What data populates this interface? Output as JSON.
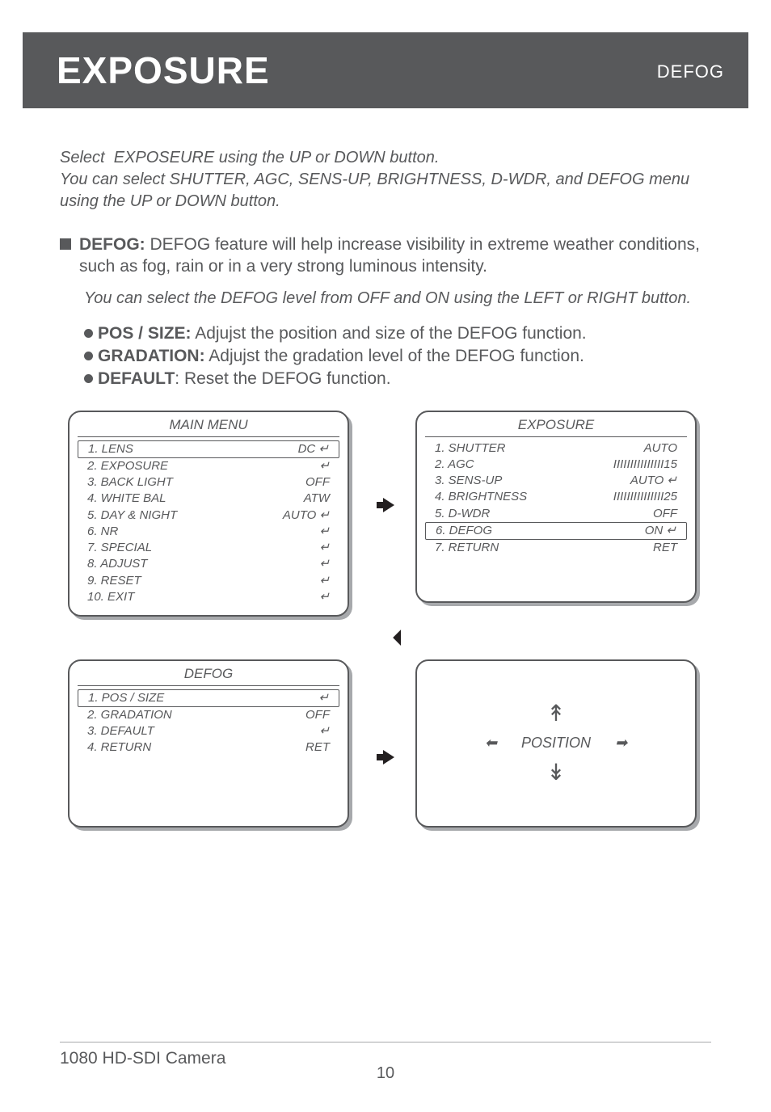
{
  "header": {
    "title": "EXPOSURE",
    "sub": "DEFOG"
  },
  "intro": "Select  EXPOSEURE using the UP or DOWN button.\nYou can select SHUTTER, AGC, SENS-UP, BRIGHTNESS, D-WDR, and DEFOG menu using the UP or DOWN button.",
  "defog_label": "DEFOG:",
  "defog_desc": "  DEFOG feature will help increase visibility in extreme weather conditions, such as fog, rain or in a very strong luminous intensity.",
  "defog_sub": "You can select the DEFOG level  from OFF and ON using the LEFT or RIGHT button.",
  "bullets": [
    {
      "label": "POS / SIZE:",
      "text": " Adjujst the position and size of the DEFOG function."
    },
    {
      "label": "GRADATION:",
      "text": " Adjujst the gradation level of the DEFOG function."
    },
    {
      "label": "DEFAULT",
      "text": ": Reset the DEFOG function."
    }
  ],
  "main_menu": {
    "title": "MAIN MENU",
    "rows": [
      {
        "l": "1. LENS",
        "r": "DC ↵",
        "hl": true
      },
      {
        "l": "2. EXPOSURE",
        "r": "↵"
      },
      {
        "l": "3. BACK LIGHT",
        "r": "OFF"
      },
      {
        "l": "4. WHITE BAL",
        "r": "ATW"
      },
      {
        "l": "5. DAY & NIGHT",
        "r": "AUTO ↵"
      },
      {
        "l": "6. NR",
        "r": "↵"
      },
      {
        "l": "7. SPECIAL",
        "r": "↵"
      },
      {
        "l": "8. ADJUST",
        "r": "↵"
      },
      {
        "l": "9. RESET",
        "r": "↵"
      },
      {
        "l": "10. EXIT",
        "r": "↵"
      }
    ]
  },
  "exposure_menu": {
    "title": "EXPOSURE",
    "rows": [
      {
        "l": "1. SHUTTER",
        "r": "AUTO"
      },
      {
        "l": "2. AGC",
        "r": "IIIIIIIIIIIIIII15"
      },
      {
        "l": "3. SENS-UP",
        "r": "AUTO ↵"
      },
      {
        "l": "4. BRIGHTNESS",
        "r": "IIIIIIIIIIIIIII25"
      },
      {
        "l": "5. D-WDR",
        "r": "OFF"
      },
      {
        "l": "6. DEFOG",
        "r": "ON ↵",
        "hl": true
      },
      {
        "l": "7. RETURN",
        "r": "RET"
      }
    ]
  },
  "defog_menu": {
    "title": "DEFOG",
    "rows": [
      {
        "l": "1. POS / SIZE",
        "r": "↵",
        "hl": true
      },
      {
        "l": "2. GRADATION",
        "r": "OFF"
      },
      {
        "l": "3. DEFAULT",
        "r": "↵"
      },
      {
        "l": "4. RETURN",
        "r": "RET"
      }
    ]
  },
  "position_label": "POSITION",
  "footer": "1080 HD-SDI Camera",
  "page": "10",
  "colors": {
    "text": "#58595b",
    "header_bg": "#58595b",
    "shadow": "#a7a9ac",
    "arrow": "#231f20"
  }
}
